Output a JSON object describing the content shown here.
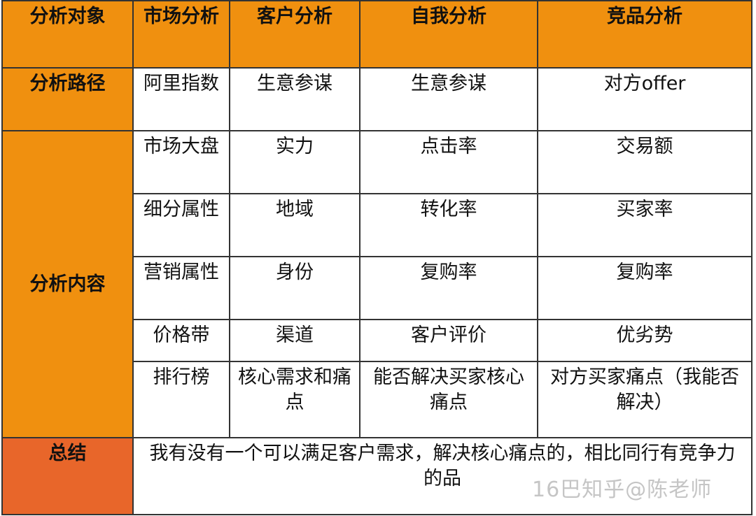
{
  "header": [
    "分析对象",
    "市场分析",
    "客户分析",
    "自我分析",
    "竞品分析"
  ],
  "path_row": {
    "label": "分析路径",
    "cells": [
      "阿里指数",
      "生意参谋",
      "生意参谋",
      "对方offer"
    ]
  },
  "content": {
    "label": "分析内容",
    "rows": [
      [
        "市场大盘",
        "实力",
        "点击率",
        "交易额"
      ],
      [
        "细分属性",
        "地域",
        "转化率",
        "买家率"
      ],
      [
        "营销属性",
        "身份",
        "复购率",
        "复购率"
      ],
      [
        "价格带",
        "渠道",
        "客户评价",
        "优劣势"
      ],
      [
        "排行榜",
        "核心需求和痛点",
        "能否解决买家核心痛点",
        "对方买家痛点（我能否解决）"
      ]
    ]
  },
  "summary": {
    "label": "总结",
    "text": "我有没有一个可以满足客户需求，解决核心痛点的，相比同行有竞争力的品"
  },
  "watermark": "16巴知乎@陈老师",
  "colors": {
    "header": "#f0900f",
    "summary": "#e8662a"
  }
}
